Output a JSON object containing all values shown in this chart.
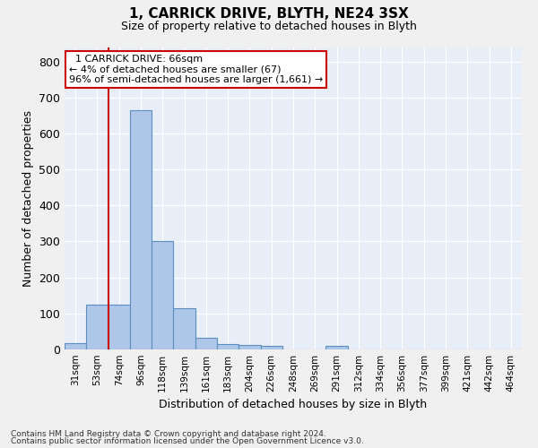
{
  "title_line1": "1, CARRICK DRIVE, BLYTH, NE24 3SX",
  "title_line2": "Size of property relative to detached houses in Blyth",
  "xlabel": "Distribution of detached houses by size in Blyth",
  "ylabel": "Number of detached properties",
  "footnote1": "Contains HM Land Registry data © Crown copyright and database right 2024.",
  "footnote2": "Contains public sector information licensed under the Open Government Licence v3.0.",
  "bar_labels": [
    "31sqm",
    "53sqm",
    "74sqm",
    "96sqm",
    "118sqm",
    "139sqm",
    "161sqm",
    "183sqm",
    "204sqm",
    "226sqm",
    "248sqm",
    "269sqm",
    "291sqm",
    "312sqm",
    "334sqm",
    "356sqm",
    "377sqm",
    "399sqm",
    "421sqm",
    "442sqm",
    "464sqm"
  ],
  "bar_values": [
    18,
    125,
    125,
    665,
    300,
    115,
    33,
    15,
    12,
    10,
    0,
    0,
    10,
    0,
    0,
    0,
    0,
    0,
    0,
    0,
    0
  ],
  "bar_color": "#aec6e8",
  "bar_edge_color": "#5b8fc0",
  "ylim": [
    0,
    840
  ],
  "yticks": [
    0,
    100,
    200,
    300,
    400,
    500,
    600,
    700,
    800
  ],
  "red_line_x": 1.5,
  "annotation_text": "  1 CARRICK DRIVE: 66sqm\n← 4% of detached houses are smaller (67)\n96% of semi-detached houses are larger (1,661) →",
  "annotation_box_color": "#ffffff",
  "annotation_box_edge": "#cc0000",
  "red_line_color": "#cc0000",
  "bg_color": "#e8eef8",
  "grid_color": "#ffffff",
  "fig_bg_color": "#f0f0f0"
}
